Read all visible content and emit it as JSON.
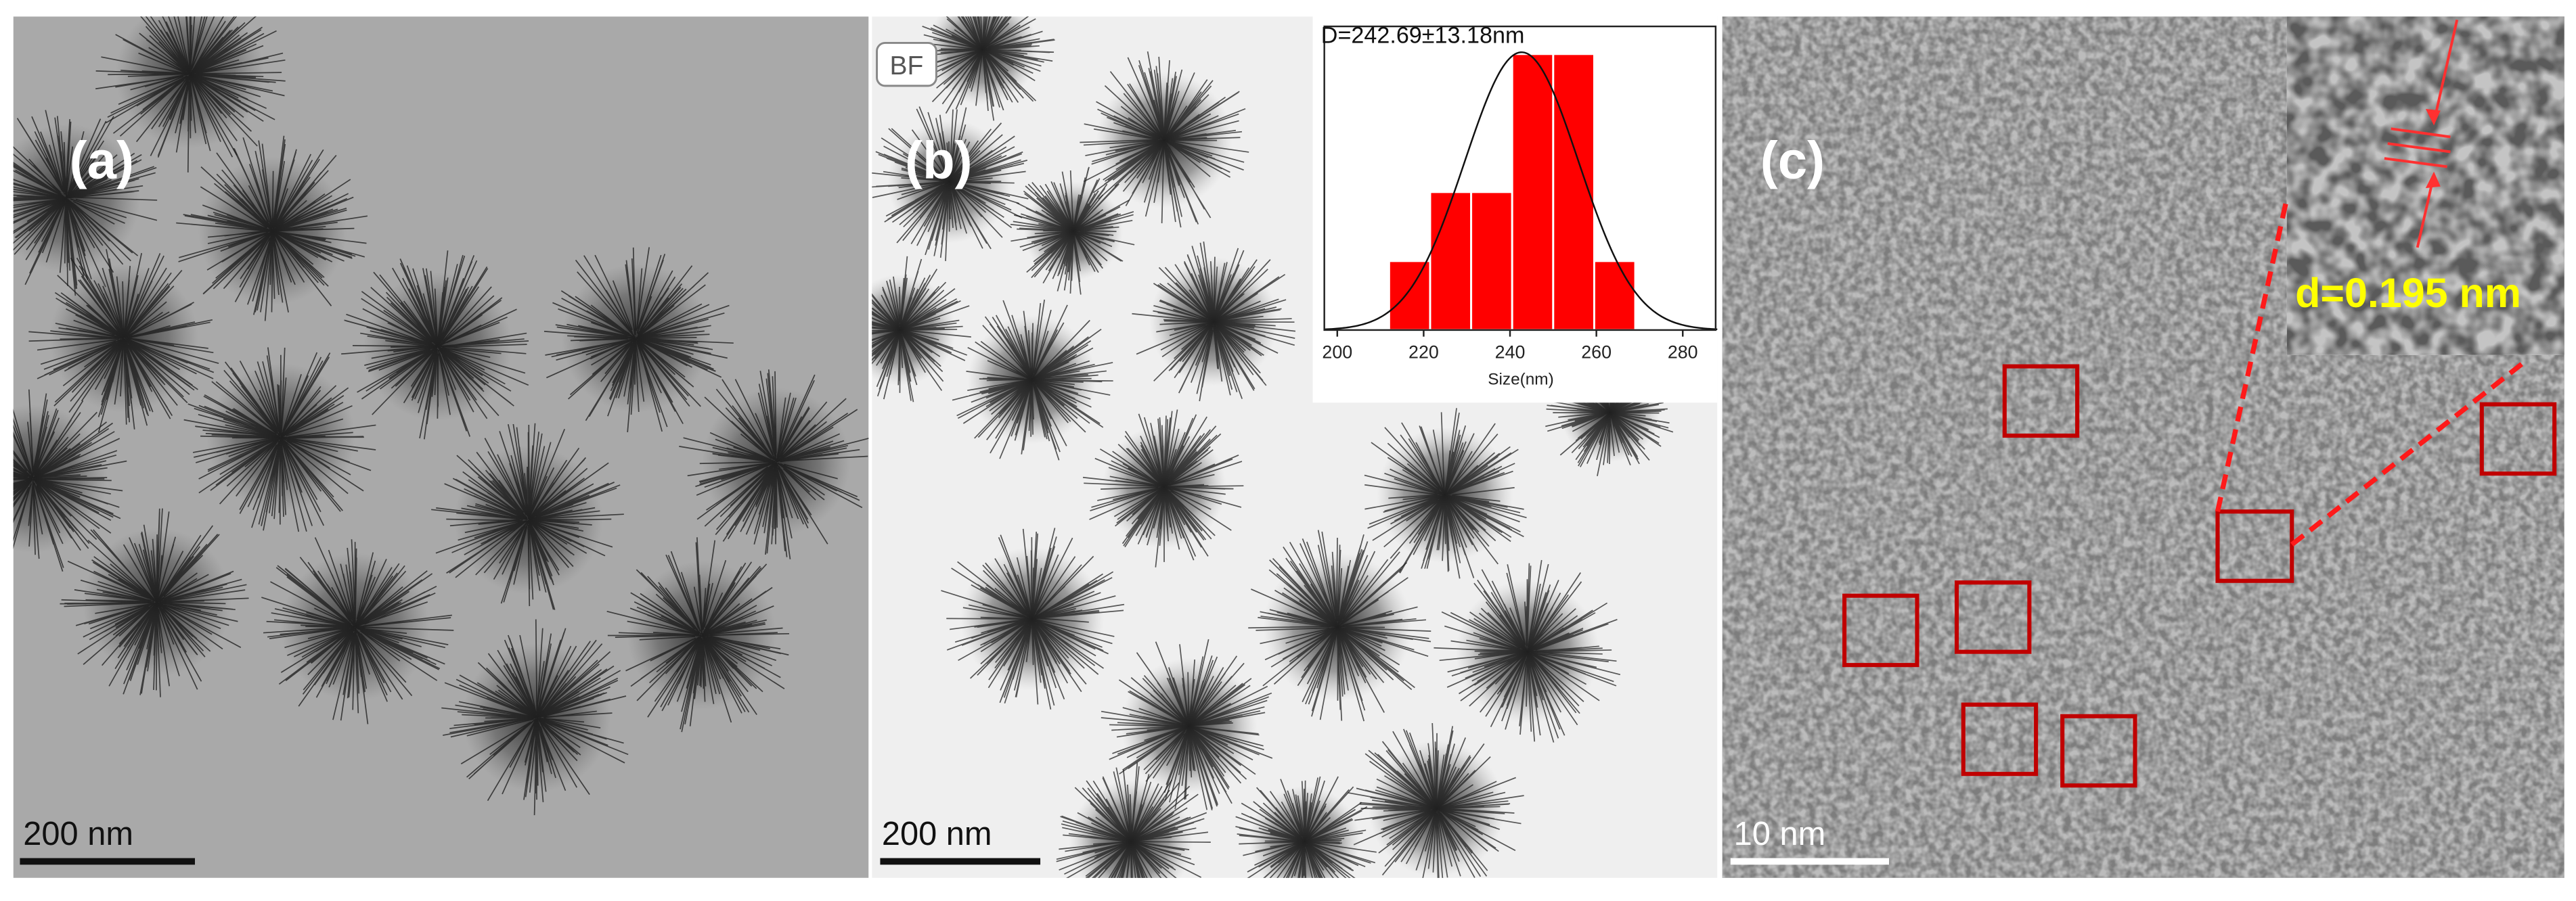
{
  "panels": [
    {
      "label": "(a)",
      "scale_bar": "200 nm"
    },
    {
      "label": "(b)",
      "badge": "BF",
      "scale_bar": "200 nm"
    },
    {
      "label": "(c)",
      "scale_bar": "10 nm",
      "annotation": "d=0.195 nm"
    }
  ],
  "chart_data": {
    "type": "histogram",
    "title": "D=242.69±13.18nm",
    "x_label": "Size(nm)",
    "bins": [
      212,
      221.5,
      231,
      240.5,
      250,
      259.5,
      269
    ],
    "counts": [
      1,
      2,
      2,
      4,
      4,
      1
    ],
    "color": "#ff0000",
    "xlim": [
      197,
      288
    ],
    "xticks": [
      200,
      220,
      240,
      260,
      280
    ],
    "ylim": [
      0,
      4.4
    ],
    "fit": {
      "mean": 242.69,
      "sd": 13.18
    }
  }
}
